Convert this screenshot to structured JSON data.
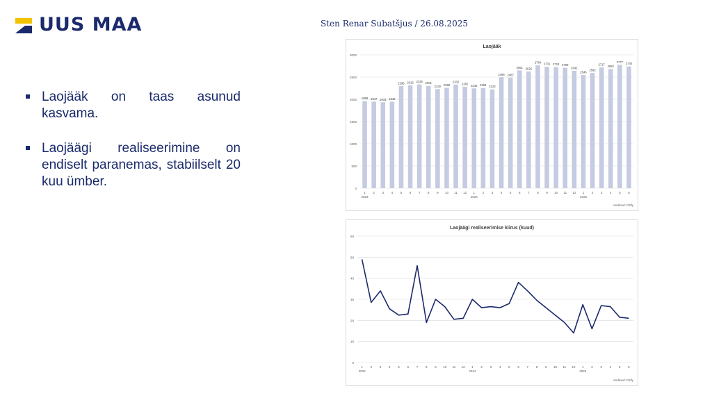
{
  "logo": {
    "text": "UUS MAA"
  },
  "header": {
    "author_date": "Sten Renar Subatšjus / 26.08.2025"
  },
  "bullets": [
    "Laojääk on taas asunud kasvama.",
    "Laojäägi realiseerimine on endiselt paranemas, stabiilselt 20 kuu ümber."
  ],
  "chart_data": [
    {
      "type": "bar",
      "title": "Laojääk",
      "categories": [
        "1",
        "2",
        "3",
        "4",
        "5",
        "6",
        "7",
        "8",
        "9",
        "10",
        "11",
        "12",
        "1",
        "2",
        "3",
        "4",
        "5",
        "6",
        "7",
        "8",
        "9",
        "10",
        "11",
        "12",
        "1",
        "2",
        "3",
        "4",
        "5",
        "6"
      ],
      "year_labels": [
        {
          "label": "2023",
          "at_index": 0
        },
        {
          "label": "2024",
          "at_index": 12
        },
        {
          "label": "2025",
          "at_index": 24
        }
      ],
      "values": [
        1959,
        1947,
        1933,
        1946,
        2298,
        2315,
        2335,
        2301,
        2230,
        2258,
        2332,
        2282,
        2246,
        2254,
        2223,
        2496,
        2487,
        2651,
        2626,
        2764,
        2731,
        2724,
        2709,
        2642,
        2546,
        2592,
        2717,
        2682,
        2777,
        2740
      ],
      "ylim": [
        0,
        3000
      ],
      "yticks": [
        0,
        500,
        1000,
        1500,
        2000,
        2500,
        3000
      ],
      "color": "#c5cbe0",
      "source": "Andmed: Citify"
    },
    {
      "type": "line",
      "title": "Laojäägi realiseerimise kiirus (kuud)",
      "categories": [
        "1",
        "2",
        "3",
        "4",
        "5",
        "6",
        "7",
        "8",
        "9",
        "10",
        "11",
        "12",
        "1",
        "2",
        "3",
        "4",
        "5",
        "6",
        "7",
        "8",
        "9",
        "10",
        "11",
        "12",
        "1",
        "2",
        "3",
        "4",
        "5",
        "6"
      ],
      "year_labels": [
        {
          "label": "2023",
          "at_index": 0
        },
        {
          "label": "2024",
          "at_index": 12
        },
        {
          "label": "2025",
          "at_index": 24
        }
      ],
      "values": [
        49,
        28.5,
        34,
        25.5,
        22.5,
        23,
        46,
        19,
        30,
        26.5,
        20.5,
        21,
        30,
        26,
        26.5,
        26,
        28,
        38,
        34,
        29.5,
        26,
        22.5,
        19,
        14,
        27.5,
        16,
        27,
        26.5,
        21.5,
        21
      ],
      "ylim": [
        0,
        60
      ],
      "yticks": [
        0,
        10,
        20,
        30,
        40,
        50,
        60
      ],
      "color": "#1a2a6c",
      "source": "Andmed: Citify"
    }
  ]
}
